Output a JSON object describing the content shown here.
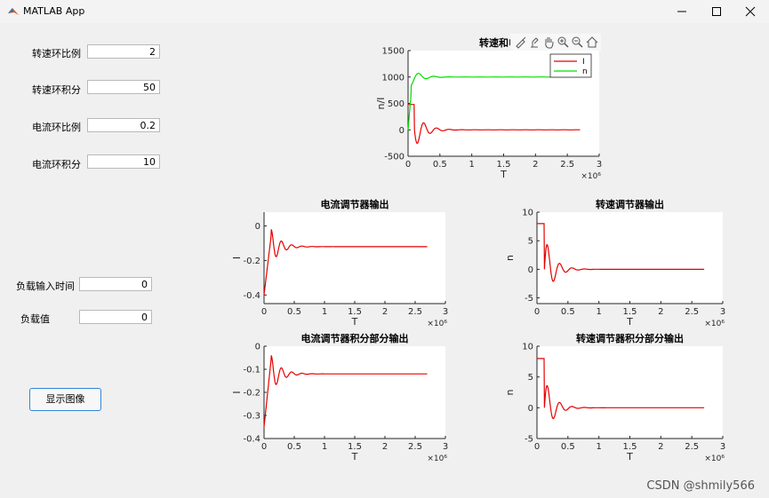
{
  "window": {
    "title": "MATLAB App"
  },
  "controls": {
    "speed_p_label": "转速环比例",
    "speed_p_value": "2",
    "speed_i_label": "转速环积分",
    "speed_i_value": "50",
    "curr_p_label": "电流环比例",
    "curr_p_value": "0.2",
    "curr_i_label": "电流环积分",
    "curr_i_value": "10",
    "load_time_label": "负载输入时间",
    "load_time_value": "0",
    "load_value_label": "负载值",
    "load_value_value": "0",
    "show_button": "显示图像"
  },
  "watermark": "CSDN @shmily566",
  "colors": {
    "red": "#e60000",
    "green": "#00dd00"
  },
  "chart_data": [
    {
      "type": "line",
      "title": "转速和电流",
      "xlabel": "T",
      "ylabel": "n/I",
      "xlim": [
        0,
        3
      ],
      "ylim": [
        -500,
        1500
      ],
      "xticks": [
        "0",
        "0.5",
        "1",
        "1.5",
        "2",
        "2.5",
        "3"
      ],
      "yticks": [
        "-500",
        "0",
        "500",
        "1000",
        "1500"
      ],
      "exponent": "×10⁶",
      "legend": {
        "position": "top-right",
        "entries": [
          "I",
          "n"
        ]
      },
      "series": [
        {
          "name": "I",
          "color": "#e60000",
          "shape": "current",
          "final": 0,
          "start": 480,
          "amp": -350
        },
        {
          "name": "n",
          "color": "#00dd00",
          "shape": "speed",
          "final": 1000,
          "start": 0,
          "amp": 150
        }
      ]
    },
    {
      "type": "line",
      "title": "电流调节器输出",
      "xlabel": "T",
      "ylabel": "I",
      "xlim": [
        0,
        3
      ],
      "ylim": [
        -0.45,
        0.08
      ],
      "xticks": [
        "0",
        "0.5",
        "1",
        "1.5",
        "2",
        "2.5",
        "3"
      ],
      "yticks": [
        "-0.4",
        "-0.2",
        "0"
      ],
      "ytickvals": [
        -0.4,
        -0.2,
        0
      ],
      "exponent": "×10⁶",
      "series": [
        {
          "color": "#e60000",
          "shape": "creg",
          "final": -0.12,
          "start": -0.4,
          "amp": 0.1
        }
      ]
    },
    {
      "type": "line",
      "title": "转速调节器输出",
      "xlabel": "T",
      "ylabel": "n",
      "xlim": [
        0,
        3
      ],
      "ylim": [
        -6,
        10
      ],
      "xticks": [
        "0",
        "0.5",
        "1",
        "1.5",
        "2",
        "2.5",
        "3"
      ],
      "yticks": [
        "-5",
        "0",
        "5",
        "10"
      ],
      "ytickvals": [
        -5,
        0,
        5,
        10
      ],
      "exponent": "×10⁶",
      "series": [
        {
          "color": "#e60000",
          "shape": "sreg",
          "final": 0,
          "start": 8,
          "amp": -6
        }
      ]
    },
    {
      "type": "line",
      "title": "电流调节器积分部分输出",
      "xlabel": "T",
      "ylabel": "I",
      "xlim": [
        0,
        3
      ],
      "ylim": [
        -0.4,
        0
      ],
      "xticks": [
        "0",
        "0.5",
        "1",
        "1.5",
        "2",
        "2.5",
        "3"
      ],
      "yticks": [
        "-0.4",
        "-0.3",
        "-0.2",
        "-0.1",
        "0"
      ],
      "ytickvals": [
        -0.4,
        -0.3,
        -0.2,
        -0.1,
        0
      ],
      "exponent": "×10⁶",
      "series": [
        {
          "color": "#e60000",
          "shape": "cint",
          "final": -0.12,
          "start": -0.35,
          "amp": 0.08
        }
      ]
    },
    {
      "type": "line",
      "title": "转速调节器积分部分输出",
      "xlabel": "T",
      "ylabel": "n",
      "xlim": [
        0,
        3
      ],
      "ylim": [
        -5,
        10
      ],
      "xticks": [
        "0",
        "0.5",
        "1",
        "1.5",
        "2",
        "2.5",
        "3"
      ],
      "yticks": [
        "-5",
        "0",
        "5",
        "10"
      ],
      "ytickvals": [
        -5,
        0,
        5,
        10
      ],
      "exponent": "×10⁶",
      "series": [
        {
          "color": "#e60000",
          "shape": "sint",
          "final": 0,
          "start": 8,
          "amp": -5
        }
      ]
    }
  ]
}
